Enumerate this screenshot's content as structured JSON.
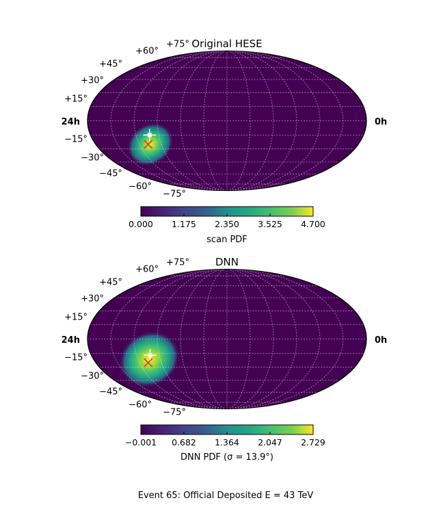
{
  "figure": {
    "caption": "Event 65: Official Deposited E = 43 TeV"
  },
  "chart_data": [
    {
      "type": "heatmap",
      "projection": "mollweide",
      "title": "Original HESE",
      "ra_labels": {
        "left": "24h",
        "right": "0h"
      },
      "dec_labels": [
        "+75°",
        "+60°",
        "+45°",
        "+30°",
        "+15°",
        "−15°",
        "−30°",
        "−45°",
        "−60°",
        "−75°"
      ],
      "colormap": "viridis",
      "colorbar": {
        "label": "scan PDF",
        "ticks": [
          "0.000",
          "1.175",
          "2.350",
          "3.525",
          "4.700"
        ],
        "range": [
          0.0,
          4.7
        ]
      },
      "hotspot": {
        "lon_deg": -107,
        "lat_deg": -25,
        "peak": 4.7
      },
      "markers": [
        {
          "kind": "white-cross",
          "lon_deg": -102,
          "lat_deg": -15
        },
        {
          "kind": "red-x",
          "lon_deg": -108,
          "lat_deg": -25
        }
      ],
      "grid": true
    },
    {
      "type": "heatmap",
      "projection": "mollweide",
      "title": "DNN",
      "ra_labels": {
        "left": "24h",
        "right": "0h"
      },
      "dec_labels": [
        "+75°",
        "+60°",
        "+45°",
        "+30°",
        "+15°",
        "−15°",
        "−30°",
        "−45°",
        "−60°",
        "−75°"
      ],
      "colormap": "viridis",
      "colorbar": {
        "label": "DNN PDF (σ = 13.9°)",
        "ticks": [
          "−0.001",
          "0.682",
          "1.364",
          "2.047",
          "2.729"
        ],
        "range": [
          -0.001,
          2.729
        ]
      },
      "hotspot": {
        "lon_deg": -103,
        "lat_deg": -17,
        "peak": 2.729
      },
      "markers": [
        {
          "kind": "white-cross",
          "lon_deg": -102,
          "lat_deg": -17
        },
        {
          "kind": "red-x",
          "lon_deg": -108,
          "lat_deg": -25
        }
      ],
      "grid": true
    }
  ]
}
